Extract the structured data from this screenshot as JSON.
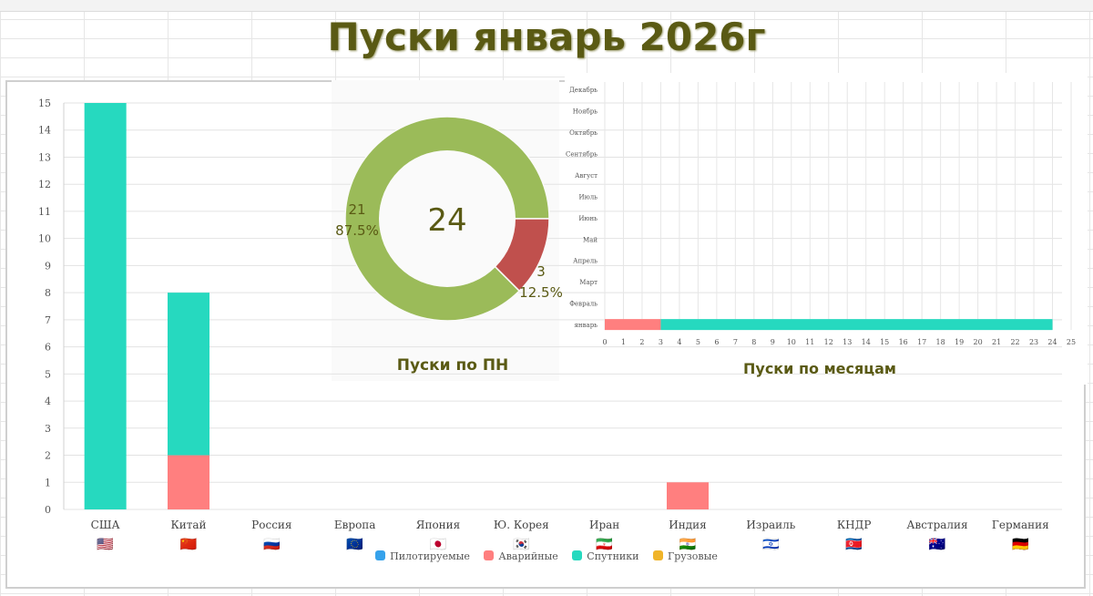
{
  "title": "Пуски январь 2026г",
  "chart_data": [
    {
      "type": "bar",
      "stacked": true,
      "categories": [
        "США",
        "Китай",
        "Россия",
        "Европа",
        "Япония",
        "Ю. Корея",
        "Иран",
        "Индия",
        "Израиль",
        "КНДР",
        "Австралия",
        "Германия"
      ],
      "flags": [
        "🇺🇸",
        "🇨🇳",
        "🇷🇺",
        "🇪🇺",
        "🇯🇵",
        "🇰🇷",
        "🇮🇷",
        "🇮🇳",
        "🇮🇱",
        "🇰🇵",
        "🇦🇺",
        "🇩🇪"
      ],
      "series": [
        {
          "name": "Пилотируемые",
          "color": "#36a2eb",
          "values": [
            0,
            0,
            0,
            0,
            0,
            0,
            0,
            0,
            0,
            0,
            0,
            0
          ]
        },
        {
          "name": "Аварийные",
          "color": "#ff7f7f",
          "values": [
            0,
            2,
            0,
            0,
            0,
            0,
            0,
            1,
            0,
            0,
            0,
            0
          ]
        },
        {
          "name": "Спутники",
          "color": "#26d9bf",
          "values": [
            15,
            6,
            0,
            0,
            0,
            0,
            0,
            0,
            0,
            0,
            0,
            0
          ]
        },
        {
          "name": "Грузовые",
          "color": "#f0b429",
          "values": [
            0,
            0,
            0,
            0,
            0,
            0,
            0,
            0,
            0,
            0,
            0,
            0
          ]
        }
      ],
      "ylim": [
        0,
        15
      ],
      "yticks": [
        "0",
        "1",
        "2",
        "3",
        "4",
        "5",
        "6",
        "7",
        "8",
        "9",
        "10",
        "11",
        "12",
        "13",
        "14",
        "15"
      ],
      "grid": true,
      "legend": "bottom"
    },
    {
      "type": "pie",
      "donut": true,
      "title": "Пуски по ПН",
      "center_label": "24",
      "slices": [
        {
          "value": 21,
          "label": "21",
          "percent": "87.5%",
          "color": "#9bbb59"
        },
        {
          "value": 3,
          "label": "3",
          "percent": "12.5%",
          "color": "#c0504d"
        }
      ]
    },
    {
      "type": "bar",
      "orientation": "horizontal",
      "stacked": true,
      "title": "Пуски по месяцам",
      "categories": [
        "Декабрь",
        "Ноябрь",
        "Октябрь",
        "Сентябрь",
        "Август",
        "Июль",
        "Июнь",
        "Май",
        "Апрель",
        "Март",
        "Февраль",
        "январь"
      ],
      "series": [
        {
          "color": "#ff7f7f",
          "values": [
            0,
            0,
            0,
            0,
            0,
            0,
            0,
            0,
            0,
            0,
            0,
            3
          ]
        },
        {
          "color": "#26d9bf",
          "values": [
            0,
            0,
            0,
            0,
            0,
            0,
            0,
            0,
            0,
            0,
            0,
            21
          ]
        }
      ],
      "xlim": [
        0,
        25
      ],
      "xticks": [
        "0",
        "1",
        "2",
        "3",
        "4",
        "5",
        "6",
        "7",
        "8",
        "9",
        "10",
        "11",
        "12",
        "13",
        "14",
        "15",
        "16",
        "17",
        "18",
        "19",
        "20",
        "21",
        "22",
        "23",
        "24",
        "25"
      ],
      "grid": true
    }
  ]
}
